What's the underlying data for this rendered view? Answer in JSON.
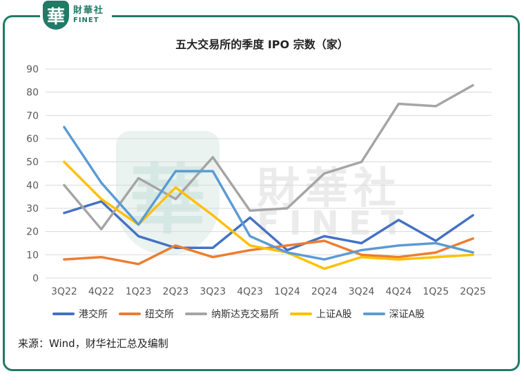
{
  "brand": {
    "logo_glyph": "華",
    "name_cn": "財華社",
    "name_en": "FINET",
    "color": "#1f7a66"
  },
  "watermark": {
    "glyph": "華",
    "name_cn": "財華社",
    "name_en": "FINET"
  },
  "source_note": "来源：Wind，财华社汇总及编制",
  "chart_data": {
    "type": "line",
    "title": "五大交易所的季度 IPO 宗数（家）",
    "categories": [
      "3Q22",
      "4Q22",
      "1Q23",
      "2Q23",
      "3Q23",
      "4Q23",
      "1Q24",
      "2Q24",
      "3Q24",
      "4Q24",
      "1Q25",
      "2Q25"
    ],
    "ylim": [
      0,
      90
    ],
    "yticks": [
      0,
      10,
      20,
      30,
      40,
      50,
      60,
      70,
      80,
      90
    ],
    "grid": true,
    "legend_position": "bottom",
    "series": [
      {
        "name": "港交所",
        "color": "#4472c4",
        "values": [
          28,
          33,
          18,
          13,
          13,
          26,
          12,
          18,
          15,
          25,
          16,
          27
        ]
      },
      {
        "name": "纽交所",
        "color": "#ed7d31",
        "values": [
          8,
          9,
          6,
          14,
          9,
          12,
          14,
          16,
          10,
          9,
          11,
          17
        ]
      },
      {
        "name": "纳斯达克交易所",
        "color": "#a5a5a5",
        "values": [
          40,
          21,
          43,
          34,
          52,
          29,
          30,
          45,
          50,
          75,
          74,
          83
        ]
      },
      {
        "name": "上证A股",
        "color": "#ffc000",
        "values": [
          50,
          34,
          23,
          39,
          27,
          14,
          11,
          4,
          9,
          8,
          9,
          10
        ]
      },
      {
        "name": "深证A股",
        "color": "#5b9bd5",
        "values": [
          65,
          41,
          23,
          46,
          46,
          18,
          11,
          8,
          12,
          14,
          15,
          11
        ]
      }
    ]
  }
}
